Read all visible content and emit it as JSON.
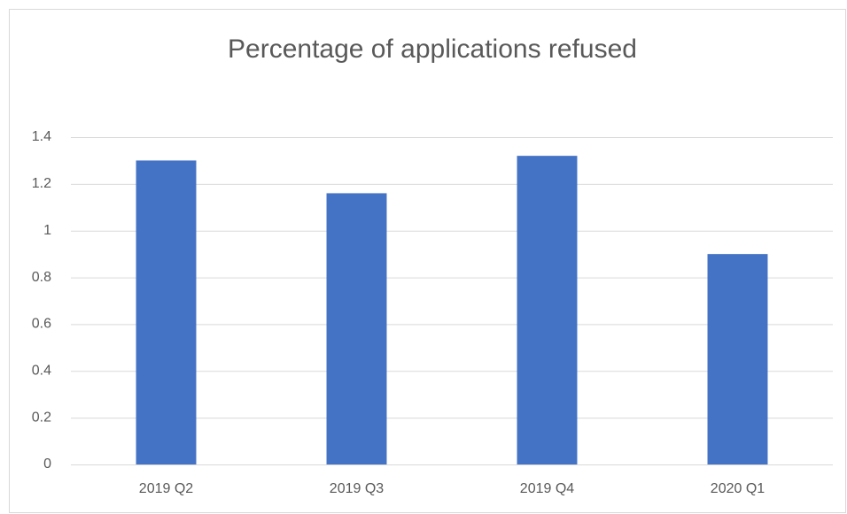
{
  "chart_data": {
    "type": "bar",
    "title": "Percentage of applications refused",
    "categories": [
      "2019 Q2",
      "2019 Q3",
      "2019 Q4",
      "2020 Q1"
    ],
    "values": [
      1.3,
      1.16,
      1.32,
      0.9
    ],
    "color": "#4472c4",
    "ylim": [
      0,
      1.4
    ],
    "yticks": [
      0,
      0.2,
      0.4,
      0.6,
      0.8,
      1,
      1.2,
      1.4
    ],
    "grid": true
  }
}
